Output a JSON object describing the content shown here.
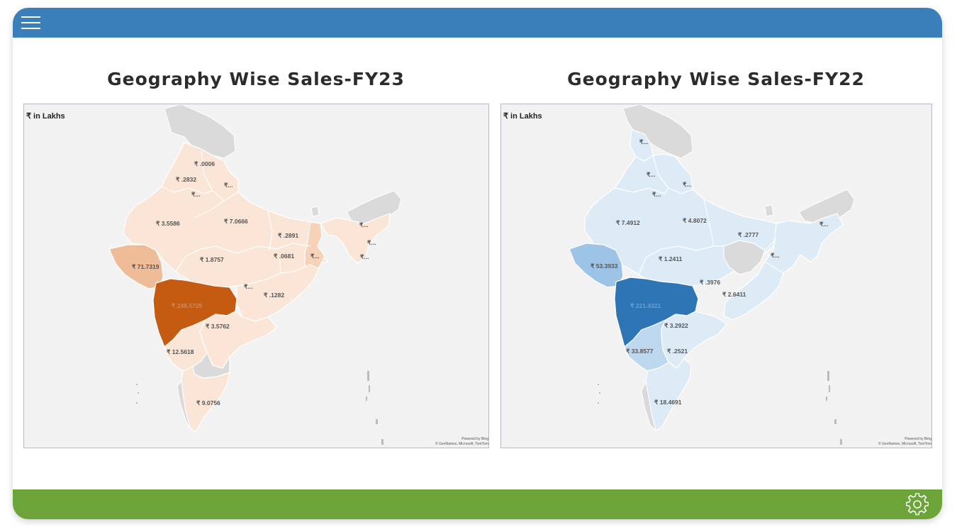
{
  "colors": {
    "header": "#3a7fba",
    "footer": "#6ca43a",
    "fy23_accent": "#c55a11",
    "fy22_accent": "#2e75b6"
  },
  "icons": {
    "menu": "hamburger-menu-icon",
    "settings": "gear-icon"
  },
  "panels": [
    {
      "title": "Geography Wise Sales-FY23",
      "unit_label": "₹ in Lakhs",
      "attribution_line1": "Powered by Bing",
      "attribution_line2": "© GeoNames, Microsoft, TomTom",
      "labels": [
        "₹ .0006",
        "₹ .2832",
        "₹...",
        "₹...",
        "₹ 3.5586",
        "₹ 7.0666",
        "₹ .2891",
        "₹...",
        "₹...",
        "₹ 71.7319",
        "₹ 1.8757",
        "₹ .0681",
        "₹...",
        "₹...",
        "₹...",
        "₹ 248.5729",
        "₹ .1282",
        "₹ 3.5762",
        "₹ 12.5618",
        "₹ 9.0756"
      ]
    },
    {
      "title": "Geography Wise Sales-FY22",
      "unit_label": "₹ in Lakhs",
      "attribution_line1": "Powered by Bing",
      "attribution_line2": "© GeoNames, Microsoft, TomTom",
      "labels": [
        "₹...",
        "₹...",
        "₹...",
        "₹...",
        "₹ 7.4912",
        "₹ 4.8072",
        "₹ .2777",
        "₹...",
        "₹...",
        "₹ 53.3933",
        "₹ 1.2411",
        "₹ .3976",
        "₹ 2.6411",
        "₹ 221.4321",
        "₹ 3.2922",
        "₹ 33.8577",
        "₹ .2521",
        "₹ 18.4691"
      ]
    }
  ]
}
